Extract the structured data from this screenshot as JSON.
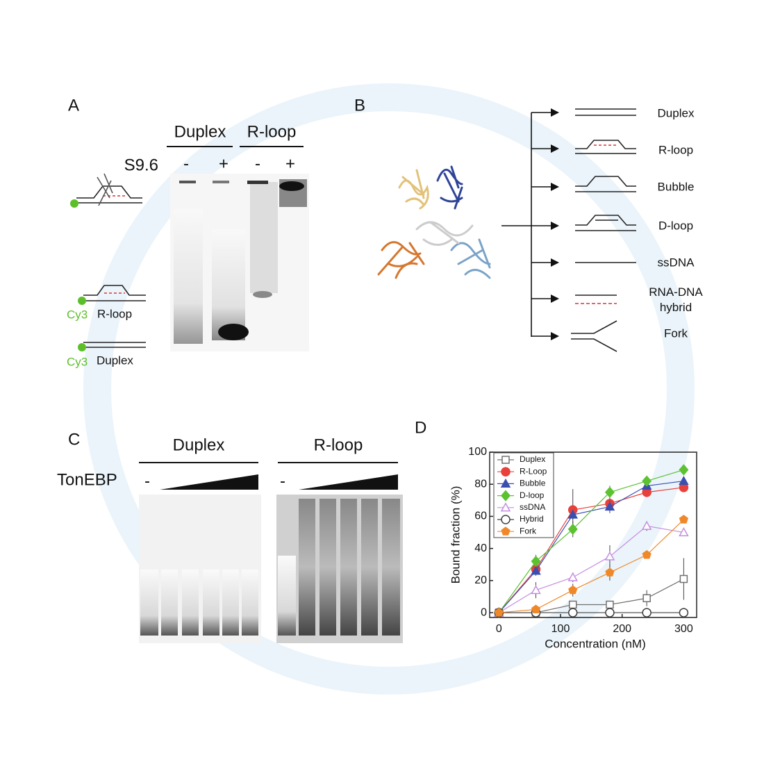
{
  "panel_a": {
    "label": "A",
    "groups": [
      "Duplex",
      "R-loop"
    ],
    "antibody": "S9.6",
    "lanes": [
      "-",
      "+",
      "-",
      "+"
    ],
    "substrates": [
      {
        "dye": "Cy3",
        "name": "R-loop"
      },
      {
        "dye": "Cy3",
        "name": "Duplex"
      }
    ]
  },
  "panel_b": {
    "label": "B",
    "substrates": [
      "Duplex",
      "R-loop",
      "Bubble",
      "D-loop",
      "ssDNA",
      "RNA-DNA hybrid",
      "Fork"
    ]
  },
  "panel_c": {
    "label": "C",
    "groups": [
      "Duplex",
      "R-loop"
    ],
    "protein": "TonEBP",
    "lanes": [
      "-",
      "-"
    ]
  },
  "chart_data": {
    "type": "line",
    "label": "D",
    "x_label": "Concentration (nM)",
    "y_label": "Bound fraction (%)",
    "x": [
      0,
      60,
      120,
      180,
      240,
      300
    ],
    "xlim": [
      -15,
      321
    ],
    "ylim": [
      -3,
      100
    ],
    "xticks": [
      0,
      100,
      200,
      300
    ],
    "yticks": [
      0,
      20,
      40,
      60,
      80,
      100
    ],
    "series": [
      {
        "name": "Duplex",
        "color": "#707070",
        "marker": "square",
        "filled": false,
        "values": [
          0,
          0,
          5,
          5,
          9,
          21
        ],
        "errors": [
          0,
          1,
          2,
          2,
          5,
          13
        ]
      },
      {
        "name": "R-Loop",
        "color": "#e8403a",
        "marker": "circle",
        "filled": true,
        "values": [
          0,
          27,
          64,
          68,
          75,
          78
        ],
        "errors": [
          0,
          3,
          13,
          5,
          3,
          2
        ]
      },
      {
        "name": "Bubble",
        "color": "#3a4fb0",
        "marker": "triangle",
        "filled": true,
        "values": [
          0,
          26,
          61,
          66,
          79,
          82
        ],
        "errors": [
          0,
          3,
          3,
          4,
          2,
          2
        ]
      },
      {
        "name": "D-loop",
        "color": "#5cc230",
        "marker": "diamond",
        "filled": true,
        "values": [
          0,
          32,
          52,
          75,
          82,
          89
        ],
        "errors": [
          0,
          4,
          5,
          4,
          2,
          2
        ]
      },
      {
        "name": "ssDNA",
        "color": "#c58ee0",
        "marker": "triangle",
        "filled": false,
        "values": [
          0,
          14,
          22,
          35,
          54,
          50
        ],
        "errors": [
          0,
          5,
          3,
          7,
          3,
          2
        ]
      },
      {
        "name": "Hybrid",
        "color": "#404040",
        "marker": "circle",
        "filled": false,
        "values": [
          0,
          0,
          0,
          0,
          0,
          0
        ],
        "errors": [
          0,
          0,
          0,
          0,
          0,
          0
        ]
      },
      {
        "name": "Fork",
        "color": "#f0882a",
        "marker": "pentagon",
        "filled": true,
        "values": [
          0,
          2,
          14,
          25,
          36,
          58
        ],
        "errors": [
          0,
          2,
          4,
          5,
          2,
          2
        ]
      }
    ]
  }
}
